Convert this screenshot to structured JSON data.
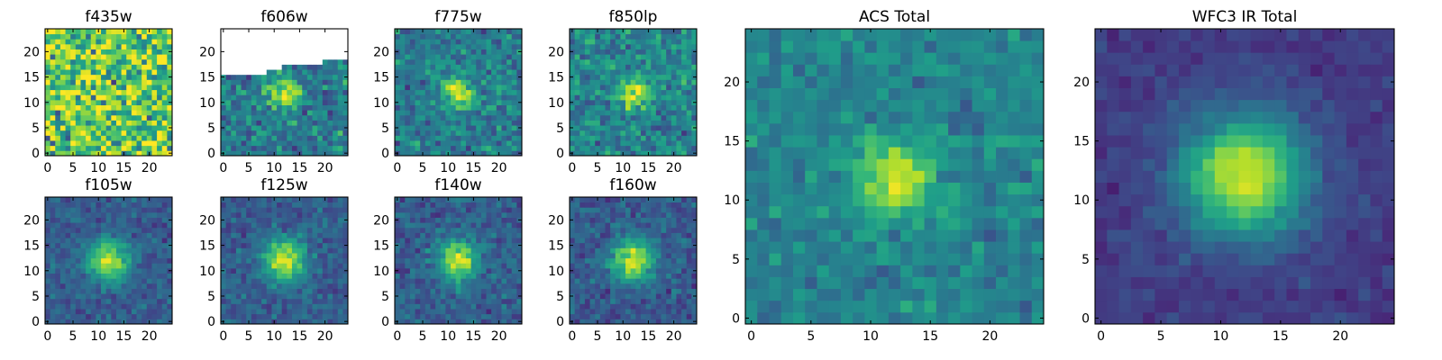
{
  "colormap": "viridis",
  "colors": {
    "viridis_stops": [
      "#440154",
      "#482878",
      "#3e4989",
      "#31688e",
      "#26828e",
      "#1f9e89",
      "#35b779",
      "#6ece58",
      "#b5de2b",
      "#fde725"
    ],
    "frame": "#000000",
    "masked": "#ffffff"
  },
  "chart_data": [
    {
      "type": "heatmap",
      "title": "f435w",
      "grid": [
        25,
        25
      ],
      "xlim": [
        0,
        24
      ],
      "ylim": [
        0,
        24
      ],
      "xticks": [
        0,
        5,
        10,
        15,
        20
      ],
      "yticks": [
        0,
        5,
        10,
        15,
        20
      ],
      "source_peak": [
        12,
        12
      ],
      "source_strength": 0.0,
      "source_sigma": 2.5,
      "background_level": 0.75,
      "noise_level": 0.28,
      "masked_above_y": null
    },
    {
      "type": "heatmap",
      "title": "f606w",
      "grid": [
        25,
        25
      ],
      "xlim": [
        0,
        24
      ],
      "ylim": [
        0,
        24
      ],
      "xticks": [
        0,
        5,
        10,
        15,
        20
      ],
      "yticks": [
        0,
        5,
        10,
        15,
        20
      ],
      "source_peak": [
        12,
        12
      ],
      "source_strength": 0.55,
      "source_sigma": 2.2,
      "background_level": 0.42,
      "noise_level": 0.16,
      "masked_above_y": {
        "x": [
          0,
          8,
          9,
          10,
          11,
          12,
          13,
          19,
          20,
          22,
          23
        ],
        "y": [
          15,
          15,
          16,
          16,
          16,
          17,
          17,
          17,
          18,
          18,
          18
        ]
      }
    },
    {
      "type": "heatmap",
      "title": "f775w",
      "grid": [
        25,
        25
      ],
      "xlim": [
        0,
        24
      ],
      "ylim": [
        0,
        24
      ],
      "xticks": [
        0,
        5,
        10,
        15,
        20
      ],
      "yticks": [
        0,
        5,
        10,
        15,
        20
      ],
      "source_peak": [
        12,
        12
      ],
      "source_strength": 0.55,
      "source_sigma": 2.0,
      "background_level": 0.42,
      "noise_level": 0.14,
      "masked_above_y": null
    },
    {
      "type": "heatmap",
      "title": "f850lp",
      "grid": [
        25,
        25
      ],
      "xlim": [
        0,
        24
      ],
      "ylim": [
        0,
        24
      ],
      "xticks": [
        0,
        5,
        10,
        15,
        20
      ],
      "yticks": [
        0,
        5,
        10,
        15,
        20
      ],
      "source_peak": [
        12,
        12
      ],
      "source_strength": 0.52,
      "source_sigma": 2.1,
      "background_level": 0.45,
      "noise_level": 0.15,
      "masked_above_y": null
    },
    {
      "type": "heatmap",
      "title": "f105w",
      "grid": [
        25,
        25
      ],
      "xlim": [
        0,
        24
      ],
      "ylim": [
        0,
        24
      ],
      "xticks": [
        0,
        5,
        10,
        15,
        20
      ],
      "yticks": [
        0,
        5,
        10,
        15,
        20
      ],
      "source_peak": [
        12,
        12
      ],
      "source_strength": 0.62,
      "source_sigma": 2.8,
      "background_level": 0.3,
      "noise_level": 0.09,
      "masked_above_y": null
    },
    {
      "type": "heatmap",
      "title": "f125w",
      "grid": [
        25,
        25
      ],
      "xlim": [
        0,
        24
      ],
      "ylim": [
        0,
        24
      ],
      "xticks": [
        0,
        5,
        10,
        15,
        20
      ],
      "yticks": [
        0,
        5,
        10,
        15,
        20
      ],
      "source_peak": [
        12,
        12
      ],
      "source_strength": 0.62,
      "source_sigma": 2.9,
      "background_level": 0.3,
      "noise_level": 0.09,
      "masked_above_y": null
    },
    {
      "type": "heatmap",
      "title": "f140w",
      "grid": [
        25,
        25
      ],
      "xlim": [
        0,
        24
      ],
      "ylim": [
        0,
        24
      ],
      "xticks": [
        0,
        5,
        10,
        15,
        20
      ],
      "yticks": [
        0,
        5,
        10,
        15,
        20
      ],
      "source_peak": [
        12,
        12
      ],
      "source_strength": 0.62,
      "source_sigma": 2.8,
      "background_level": 0.3,
      "noise_level": 0.1,
      "masked_above_y": null
    },
    {
      "type": "heatmap",
      "title": "f160w",
      "grid": [
        25,
        25
      ],
      "xlim": [
        0,
        24
      ],
      "ylim": [
        0,
        24
      ],
      "xticks": [
        0,
        5,
        10,
        15,
        20
      ],
      "yticks": [
        0,
        5,
        10,
        15,
        20
      ],
      "source_peak": [
        12,
        12
      ],
      "source_strength": 0.64,
      "source_sigma": 3.0,
      "background_level": 0.28,
      "noise_level": 0.1,
      "masked_above_y": null
    },
    {
      "type": "heatmap",
      "title": "ACS Total",
      "grid": [
        25,
        25
      ],
      "xlim": [
        0,
        24
      ],
      "ylim": [
        0,
        24
      ],
      "xticks": [
        0,
        5,
        10,
        15,
        20
      ],
      "yticks": [
        0,
        5,
        10,
        15,
        20
      ],
      "source_peak": [
        12,
        12
      ],
      "source_strength": 0.5,
      "source_sigma": 2.2,
      "background_level": 0.45,
      "noise_level": 0.1,
      "masked_above_y": null
    },
    {
      "type": "heatmap",
      "title": "WFC3 IR Total",
      "grid": [
        25,
        25
      ],
      "xlim": [
        0,
        24
      ],
      "ylim": [
        0,
        24
      ],
      "xticks": [
        0,
        5,
        10,
        15,
        20
      ],
      "yticks": [
        0,
        5,
        10,
        15,
        20
      ],
      "source_peak": [
        12,
        12
      ],
      "source_strength": 0.75,
      "source_sigma": 3.6,
      "background_level": 0.18,
      "noise_level": 0.05,
      "masked_above_y": null
    }
  ]
}
